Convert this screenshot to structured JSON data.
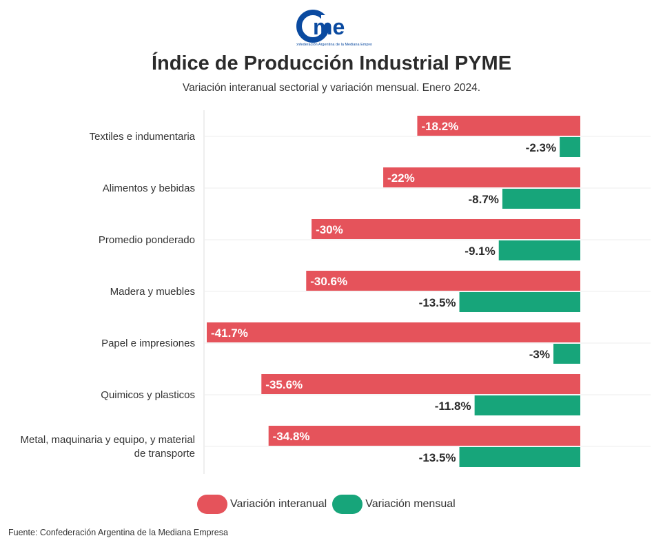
{
  "logo": {
    "text": "came",
    "tagline": "Confederación Argentina de la Mediana Empresa",
    "color": "#0a4aa0"
  },
  "title": "Índice de Producción Industrial PYME",
  "subtitle": "Variación interanual sectorial y variación mensual. Enero 2024.",
  "source": "Fuente: Confederación Argentina de la Mediana Empresa",
  "chart_data": {
    "type": "bar",
    "orientation": "horizontal",
    "categories": [
      "Textiles e indumentaria",
      "Alimentos y bebidas",
      "Promedio ponderado",
      "Madera y muebles",
      "Papel e impresiones",
      "Quimicos y plasticos",
      "Metal, maquinaria y equipo, y material de transporte"
    ],
    "series": [
      {
        "name": "Variación interanual",
        "color": "#e5535b",
        "values": [
          -18.2,
          -22,
          -30,
          -30.6,
          -41.7,
          -35.6,
          -34.8
        ],
        "labels": [
          "-18.2%",
          "-22%",
          "-30%",
          "-30.6%",
          "-41.7%",
          "-35.6%",
          "-34.8%"
        ]
      },
      {
        "name": "Variación mensual",
        "color": "#17a57a",
        "values": [
          -2.3,
          -8.7,
          -9.1,
          -13.5,
          -3,
          -11.8,
          -13.5
        ],
        "labels": [
          "-2.3%",
          "-8.7%",
          "-9.1%",
          "-13.5%",
          "-3%",
          "-11.8%",
          "-13.5%"
        ]
      }
    ],
    "xlim": [
      -41.7,
      0
    ],
    "grid": true,
    "legend": "bottom"
  }
}
